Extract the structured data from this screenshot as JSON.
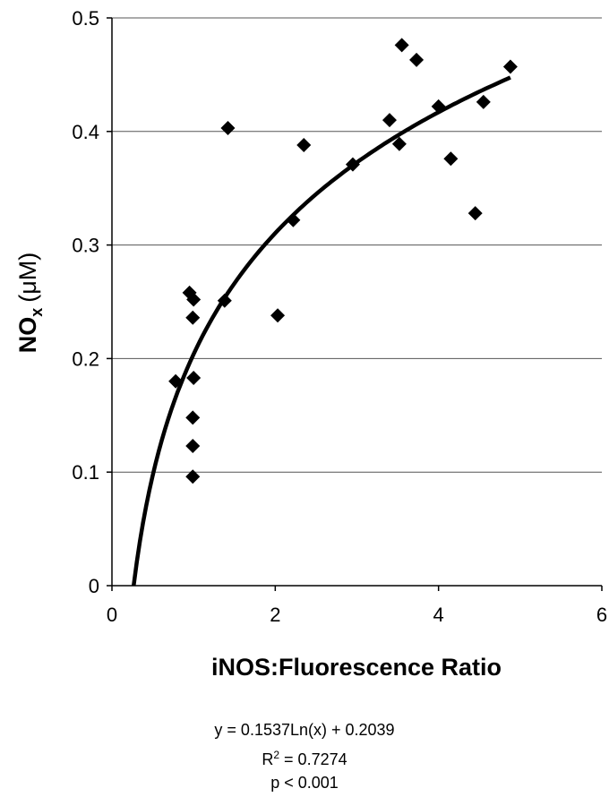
{
  "chart_data": {
    "type": "scatter",
    "title": "",
    "xlabel": "iNOS:Fluorescence Ratio",
    "ylabel": {
      "main": "NO",
      "sub": "x",
      "unit": "(μM)"
    },
    "xlim": [
      0,
      6
    ],
    "ylim": [
      0,
      0.5
    ],
    "xticks": [
      "0",
      "2",
      "4",
      "6"
    ],
    "yticks": [
      "0",
      "0.1",
      "0.2",
      "0.3",
      "0.4",
      "0.5"
    ],
    "grid": "horizontal",
    "marker": "diamond",
    "color": "#000000",
    "points": [
      {
        "x": 0.78,
        "y": 0.18
      },
      {
        "x": 0.95,
        "y": 0.258
      },
      {
        "x": 1.0,
        "y": 0.252
      },
      {
        "x": 0.99,
        "y": 0.236
      },
      {
        "x": 1.0,
        "y": 0.183
      },
      {
        "x": 0.99,
        "y": 0.148
      },
      {
        "x": 0.99,
        "y": 0.123
      },
      {
        "x": 0.99,
        "y": 0.096
      },
      {
        "x": 1.38,
        "y": 0.251
      },
      {
        "x": 1.42,
        "y": 0.403
      },
      {
        "x": 2.03,
        "y": 0.238
      },
      {
        "x": 2.22,
        "y": 0.322
      },
      {
        "x": 2.35,
        "y": 0.388
      },
      {
        "x": 2.95,
        "y": 0.371
      },
      {
        "x": 3.4,
        "y": 0.41
      },
      {
        "x": 3.52,
        "y": 0.389
      },
      {
        "x": 3.55,
        "y": 0.476
      },
      {
        "x": 3.73,
        "y": 0.463
      },
      {
        "x": 4.0,
        "y": 0.422
      },
      {
        "x": 4.15,
        "y": 0.376
      },
      {
        "x": 4.45,
        "y": 0.328
      },
      {
        "x": 4.55,
        "y": 0.426
      },
      {
        "x": 4.88,
        "y": 0.457
      }
    ],
    "trendline": {
      "type": "log",
      "a": 0.1537,
      "b": 0.2039,
      "x_range": [
        0.265,
        4.88
      ]
    },
    "annotations": {
      "equation": "y = 0.1537Ln(x) + 0.2039",
      "r2_label": "R",
      "r2_sup": "2",
      "r2_value": " = 0.7274",
      "p_value": "p < 0.001"
    }
  }
}
